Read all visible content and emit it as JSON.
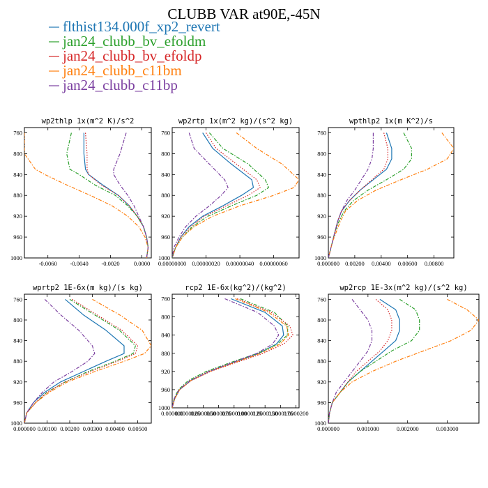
{
  "figure_title": "CLUBB VAR at90E,-45N",
  "legend": [
    {
      "label": "flthist134.000f_xp2_revert",
      "color": "#1f77b4",
      "dash": "solid"
    },
    {
      "label": "jan24_clubb_bv_efoldm",
      "color": "#2ca02c",
      "dash": "dashdot"
    },
    {
      "label": "jan24_clubb_bv_efoldp",
      "color": "#d62728",
      "dash": "dot"
    },
    {
      "label": "jan24_clubb_c11bm",
      "color": "#ff7f0e",
      "dash": "dashdot"
    },
    {
      "label": "jan24_clubb_c11bp",
      "color": "#7b3fa0",
      "dash": "dashdot"
    }
  ],
  "chart_data": [
    {
      "type": "line",
      "title": "wp2thlp  1x(m^2 K)/s^2",
      "xlim": [
        -0.0075,
        0.0006
      ],
      "ylim": [
        1000,
        750
      ],
      "x_ticks": [
        -0.006,
        -0.004,
        -0.002,
        0.0
      ],
      "x_tick_labels": [
        "-0.0060",
        "-0.0040",
        "-0.0020",
        "0.0000"
      ],
      "y_ticks": [
        760,
        800,
        840,
        880,
        920,
        960,
        1000
      ],
      "y_tick_labels": [
        "760",
        "800",
        "840",
        "880",
        "920",
        "960",
        "1000"
      ],
      "y": [
        760,
        800,
        830,
        840,
        860,
        880,
        900,
        920,
        940,
        960,
        980,
        1000
      ],
      "series": [
        {
          "name": "flthist134.000f_xp2_revert",
          "values": [
            -0.0037,
            -0.0037,
            -0.0036,
            -0.0034,
            -0.0025,
            -0.0015,
            -0.0008,
            -0.0003,
            0.0001,
            0.0003,
            0.0004,
            0.0003
          ]
        },
        {
          "name": "jan24_clubb_bv_efoldm",
          "values": [
            -0.0045,
            -0.0048,
            -0.0046,
            -0.004,
            -0.003,
            -0.0017,
            -0.0009,
            -0.0003,
            0.0001,
            0.0003,
            0.0004,
            0.0003
          ]
        },
        {
          "name": "jan24_clubb_bv_efoldp",
          "values": [
            -0.0036,
            -0.0035,
            -0.0035,
            -0.0034,
            -0.0026,
            -0.0015,
            -0.0008,
            -0.0003,
            0.0001,
            0.0003,
            0.0004,
            0.0003
          ]
        },
        {
          "name": "jan24_clubb_c11bm",
          "values": [
            -0.0075,
            -0.0075,
            -0.0068,
            -0.0062,
            -0.0048,
            -0.0033,
            -0.0019,
            -0.0009,
            -0.0002,
            0.0002,
            0.0004,
            0.0003
          ]
        },
        {
          "name": "jan24_clubb_c11bp",
          "values": [
            -0.001,
            -0.0014,
            -0.0018,
            -0.0018,
            -0.0014,
            -0.0009,
            -0.0005,
            -0.0002,
            0.0001,
            0.0003,
            0.0004,
            0.0003
          ]
        }
      ]
    },
    {
      "type": "line",
      "title": "wp2rtp  1x(m^2 kg)/(s^2 kg)",
      "xlim": [
        0.0,
        7.5e-07
      ],
      "ylim": [
        1000,
        750
      ],
      "x_ticks": [
        0.0,
        2e-07,
        4e-07,
        6e-07
      ],
      "x_tick_labels": [
        "0.00000000",
        "0.00000020",
        "0.00000040",
        "0.00000060"
      ],
      "y_ticks": [
        760,
        800,
        840,
        880,
        920,
        960,
        1000
      ],
      "y_tick_labels": [
        "760",
        "800",
        "840",
        "880",
        "920",
        "960",
        "1000"
      ],
      "y": [
        760,
        790,
        820,
        850,
        865,
        880,
        900,
        920,
        940,
        960,
        980,
        1000
      ],
      "series": [
        {
          "name": "flthist134.000f_xp2_revert",
          "values": [
            1.8e-07,
            2.4e-07,
            3.5e-07,
            4.7e-07,
            4.8e-07,
            4.1e-07,
            3e-07,
            1.8e-07,
            1e-07,
            5e-08,
            2e-08,
            0.0
          ]
        },
        {
          "name": "jan24_clubb_bv_efoldm",
          "values": [
            2.2e-07,
            3e-07,
            4.5e-07,
            5.5e-07,
            5.7e-07,
            5e-07,
            3.5e-07,
            2.1e-07,
            1.2e-07,
            6e-08,
            2e-08,
            0.0
          ]
        },
        {
          "name": "jan24_clubb_bv_efoldp",
          "values": [
            2e-07,
            2.6e-07,
            3.8e-07,
            5e-07,
            5.2e-07,
            4.5e-07,
            3.2e-07,
            1.9e-07,
            1.1e-07,
            5e-08,
            2e-08,
            0.0
          ]
        },
        {
          "name": "jan24_clubb_c11bm",
          "values": [
            3.8e-07,
            5e-07,
            6.5e-07,
            7.5e-07,
            7.2e-07,
            6e-07,
            4e-07,
            2.4e-07,
            1.3e-07,
            6e-08,
            2e-08,
            0.0
          ]
        },
        {
          "name": "jan24_clubb_c11bp",
          "values": [
            1e-07,
            1.3e-07,
            2.2e-07,
            3.1e-07,
            3.3e-07,
            2.9e-07,
            2.2e-07,
            1.4e-07,
            8e-08,
            4e-08,
            1e-08,
            0.0
          ]
        }
      ]
    },
    {
      "type": "line",
      "title": "wpthlp2  1x(m K^2)/s",
      "xlim": [
        0.0,
        0.0095
      ],
      "ylim": [
        1000,
        750
      ],
      "x_ticks": [
        0.0,
        0.002,
        0.004,
        0.006,
        0.008
      ],
      "x_tick_labels": [
        "0.000000",
        "0.00200",
        "0.00400",
        "0.00600",
        "0.00800"
      ],
      "y_ticks": [
        760,
        800,
        840,
        880,
        920,
        960,
        1000
      ],
      "y_tick_labels": [
        "760",
        "800",
        "840",
        "880",
        "920",
        "960",
        "1000"
      ],
      "y": [
        760,
        790,
        810,
        830,
        850,
        870,
        890,
        910,
        930,
        950,
        970,
        990,
        1000
      ],
      "series": [
        {
          "name": "flthist134.000f_xp2_revert",
          "values": [
            0.0044,
            0.0048,
            0.0048,
            0.0044,
            0.0034,
            0.0024,
            0.0016,
            0.001,
            0.0007,
            0.0005,
            0.0003,
            0.0001,
            0.0
          ]
        },
        {
          "name": "jan24_clubb_bv_efoldm",
          "values": [
            0.0057,
            0.0063,
            0.0063,
            0.0057,
            0.0044,
            0.003,
            0.0019,
            0.0012,
            0.0008,
            0.0005,
            0.0003,
            0.0001,
            0.0
          ]
        },
        {
          "name": "jan24_clubb_bv_efoldp",
          "values": [
            0.0042,
            0.0045,
            0.0045,
            0.0042,
            0.0033,
            0.0024,
            0.0016,
            0.001,
            0.0007,
            0.0005,
            0.0003,
            0.0001,
            0.0
          ]
        },
        {
          "name": "jan24_clubb_c11bm",
          "values": [
            0.0086,
            0.0095,
            0.009,
            0.0075,
            0.0055,
            0.0036,
            0.0022,
            0.0013,
            0.0009,
            0.0006,
            0.0003,
            0.0001,
            0.0
          ]
        },
        {
          "name": "jan24_clubb_c11bp",
          "values": [
            0.0034,
            0.0034,
            0.0033,
            0.003,
            0.0025,
            0.002,
            0.0014,
            0.001,
            0.0007,
            0.0005,
            0.0003,
            0.0001,
            0.0
          ]
        }
      ]
    },
    {
      "type": "line",
      "title": "wprtp2  1E-6x(m kg)/(s kg)",
      "xlim": [
        0.0,
        0.0056
      ],
      "ylim": [
        1000,
        750
      ],
      "x_ticks": [
        0.0,
        0.001,
        0.002,
        0.003,
        0.004,
        0.005
      ],
      "x_tick_labels": [
        "0.000000",
        "0.00100",
        "0.00200",
        "0.00300",
        "0.00400",
        "0.00500"
      ],
      "y_ticks": [
        760,
        800,
        840,
        880,
        920,
        960,
        1000
      ],
      "y_tick_labels": [
        "760",
        "800",
        "840",
        "880",
        "920",
        "960",
        "1000"
      ],
      "y": [
        760,
        790,
        820,
        850,
        865,
        880,
        900,
        920,
        940,
        960,
        980,
        1000
      ],
      "series": [
        {
          "name": "flthist134.000f_xp2_revert",
          "values": [
            0.0018,
            0.0026,
            0.0036,
            0.0044,
            0.0044,
            0.0036,
            0.0026,
            0.0016,
            0.0009,
            0.0004,
            0.0001,
            0.0
          ]
        },
        {
          "name": "jan24_clubb_bv_efoldm",
          "values": [
            0.002,
            0.0031,
            0.0042,
            0.0049,
            0.0048,
            0.004,
            0.0028,
            0.0018,
            0.001,
            0.0005,
            0.0001,
            0.0
          ]
        },
        {
          "name": "jan24_clubb_bv_efoldp",
          "values": [
            0.0021,
            0.0032,
            0.0043,
            0.005,
            0.0049,
            0.0041,
            0.0029,
            0.0018,
            0.001,
            0.0005,
            0.0001,
            0.0
          ]
        },
        {
          "name": "jan24_clubb_c11bm",
          "values": [
            0.003,
            0.0042,
            0.0052,
            0.0056,
            0.0053,
            0.0044,
            0.0031,
            0.0019,
            0.0011,
            0.0005,
            0.0001,
            0.0
          ]
        },
        {
          "name": "jan24_clubb_c11bp",
          "values": [
            0.0009,
            0.0016,
            0.0024,
            0.003,
            0.0031,
            0.0028,
            0.0021,
            0.0013,
            0.0008,
            0.0004,
            0.0001,
            0.0
          ]
        }
      ]
    },
    {
      "type": "line",
      "title": "rcp2  1E-6x(kg^2)/(kg^2)",
      "xlim": [
        0.0,
        2.05e-05
      ],
      "ylim": [
        1000,
        750
      ],
      "x_ticks": [
        0.0,
        2.5e-06,
        5e-06,
        7.5e-06,
        1e-05,
        1.25e-05,
        1.5e-05,
        1.75e-05,
        2e-05
      ],
      "x_tick_labels": [
        "0.000000",
        "0.0000025",
        "0.0000050",
        "0.0000075",
        "0.0000100",
        "0.0000125",
        "0.0000150",
        "0.0000175",
        "0.0000200"
      ],
      "y_ticks": [
        760,
        800,
        840,
        880,
        920,
        960,
        1000
      ],
      "y_tick_labels": [
        "760",
        "800",
        "840",
        "880",
        "920",
        "960",
        "1000"
      ],
      "y": [
        760,
        790,
        820,
        840,
        860,
        880,
        900,
        920,
        940,
        960,
        980,
        1000
      ],
      "series": [
        {
          "name": "flthist134.000f_xp2_revert",
          "values": [
            9.5e-06,
            1.5e-05,
            1.78e-05,
            1.8e-05,
            1.68e-05,
            1.4e-05,
            1e-05,
            6e-06,
            3e-06,
            1.2e-06,
            4e-07,
            0.0
          ]
        },
        {
          "name": "jan24_clubb_bv_efoldm",
          "values": [
            1.1e-05,
            1.65e-05,
            1.87e-05,
            1.86e-05,
            1.7e-05,
            1.38e-05,
            9.5e-06,
            5.5e-06,
            2.6e-06,
            1e-06,
            3e-07,
            0.0
          ]
        },
        {
          "name": "jan24_clubb_bv_efoldp",
          "values": [
            1.05e-05,
            1.6e-05,
            1.9e-05,
            1.95e-05,
            1.8e-05,
            1.47e-05,
            1.04e-05,
            6.2e-06,
            3.1e-06,
            1.2e-06,
            4e-07,
            0.0
          ]
        },
        {
          "name": "jan24_clubb_c11bm",
          "values": [
            1.02e-05,
            1.56e-05,
            1.85e-05,
            1.88e-05,
            1.74e-05,
            1.43e-05,
            1.01e-05,
            6e-06,
            3e-06,
            1.2e-06,
            4e-07,
            0.0
          ]
        },
        {
          "name": "jan24_clubb_c11bp",
          "values": [
            8.5e-06,
            1.38e-05,
            1.65e-05,
            1.72e-05,
            1.62e-05,
            1.37e-05,
            9.8e-06,
            5.9e-06,
            2.9e-06,
            1.1e-06,
            3e-07,
            0.0
          ]
        }
      ]
    },
    {
      "type": "line",
      "title": "wp2rcp  1E-3x(m^2 kg)/(s^2 kg)",
      "xlim": [
        0.0,
        0.0038
      ],
      "ylim": [
        1000,
        750
      ],
      "x_ticks": [
        0.0,
        0.001,
        0.002,
        0.003
      ],
      "x_tick_labels": [
        "0.000000",
        "0.001000",
        "0.002000",
        "0.003000"
      ],
      "y_ticks": [
        760,
        800,
        840,
        880,
        920,
        960,
        1000
      ],
      "y_tick_labels": [
        "760",
        "800",
        "840",
        "880",
        "920",
        "960",
        "1000"
      ],
      "y": [
        760,
        780,
        800,
        820,
        840,
        860,
        880,
        900,
        920,
        940,
        960,
        980,
        1000
      ],
      "series": [
        {
          "name": "flthist134.000f_xp2_revert",
          "values": [
            0.0013,
            0.0017,
            0.0018,
            0.0018,
            0.0017,
            0.0014,
            0.0011,
            0.0008,
            0.0005,
            0.0003,
            0.0001,
            3e-05,
            0.0
          ]
        },
        {
          "name": "jan24_clubb_bv_efoldm",
          "values": [
            0.0018,
            0.0022,
            0.0023,
            0.0023,
            0.0021,
            0.0016,
            0.0012,
            0.0008,
            0.0005,
            0.0003,
            0.0001,
            3e-05,
            0.0
          ]
        },
        {
          "name": "jan24_clubb_bv_efoldp",
          "values": [
            0.0012,
            0.0015,
            0.0016,
            0.0016,
            0.0015,
            0.0013,
            0.001,
            0.0007,
            0.0005,
            0.0003,
            0.0001,
            3e-05,
            0.0
          ]
        },
        {
          "name": "jan24_clubb_c11bm",
          "values": [
            0.003,
            0.0035,
            0.0038,
            0.0036,
            0.0031,
            0.0024,
            0.0017,
            0.0011,
            0.0006,
            0.0003,
            0.0001,
            3e-05,
            0.0
          ]
        },
        {
          "name": "jan24_clubb_c11bp",
          "values": [
            0.0006,
            0.0008,
            0.001,
            0.0011,
            0.0011,
            0.001,
            0.0008,
            0.0006,
            0.0004,
            0.0002,
            0.0001,
            3e-05,
            0.0
          ]
        }
      ]
    }
  ]
}
